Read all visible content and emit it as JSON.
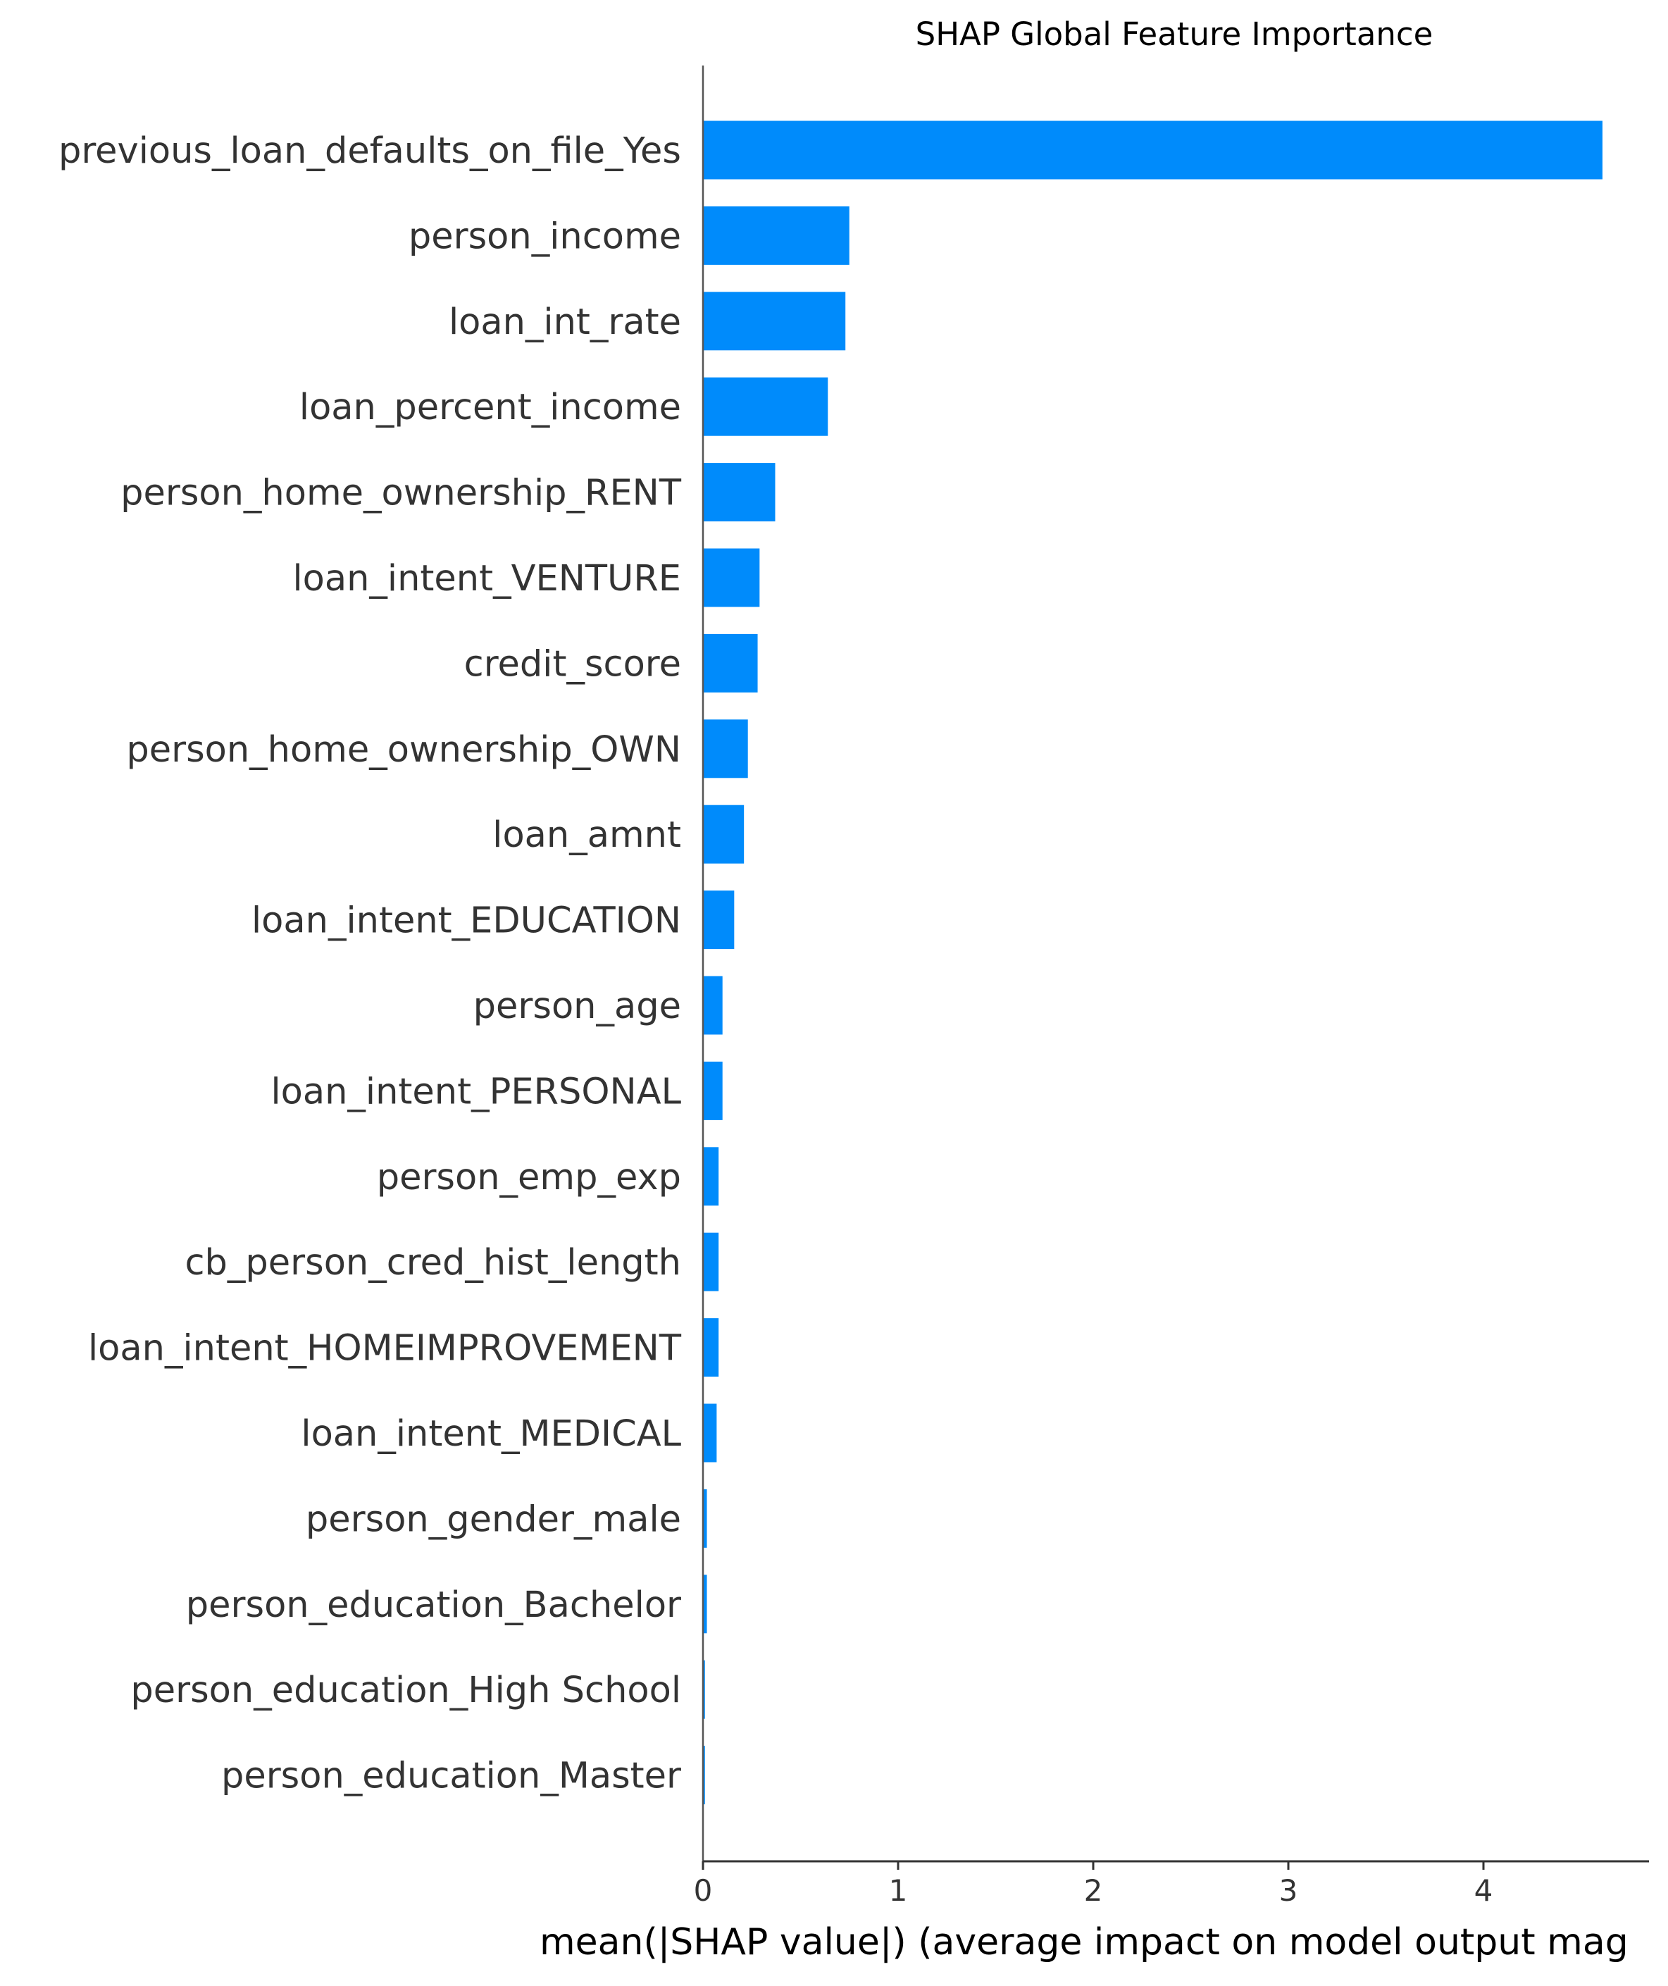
{
  "chart_data": {
    "type": "bar",
    "orientation": "horizontal",
    "title": "SHAP Global Feature Importance",
    "xlabel": "mean(|SHAP value|) (average impact on model output mag",
    "ylabel": "",
    "xlim": [
      0,
      4.86
    ],
    "xticks": [
      0,
      1,
      2,
      3,
      4
    ],
    "grid": false,
    "bar_color": "#008bfb",
    "categories": [
      "previous_loan_defaults_on_file_Yes",
      "person_income",
      "loan_int_rate",
      "loan_percent_income",
      "person_home_ownership_RENT",
      "loan_intent_VENTURE",
      "credit_score",
      "person_home_ownership_OWN",
      "loan_amnt",
      "loan_intent_EDUCATION",
      "person_age",
      "loan_intent_PERSONAL",
      "person_emp_exp",
      "cb_person_cred_hist_length",
      "loan_intent_HOMEIMPROVEMENT",
      "loan_intent_MEDICAL",
      "person_gender_male",
      "person_education_Bachelor",
      "person_education_High School",
      "person_education_Master"
    ],
    "values": [
      4.61,
      0.75,
      0.73,
      0.64,
      0.37,
      0.29,
      0.28,
      0.23,
      0.21,
      0.16,
      0.1,
      0.1,
      0.08,
      0.08,
      0.08,
      0.07,
      0.02,
      0.02,
      0.01,
      0.01
    ]
  }
}
